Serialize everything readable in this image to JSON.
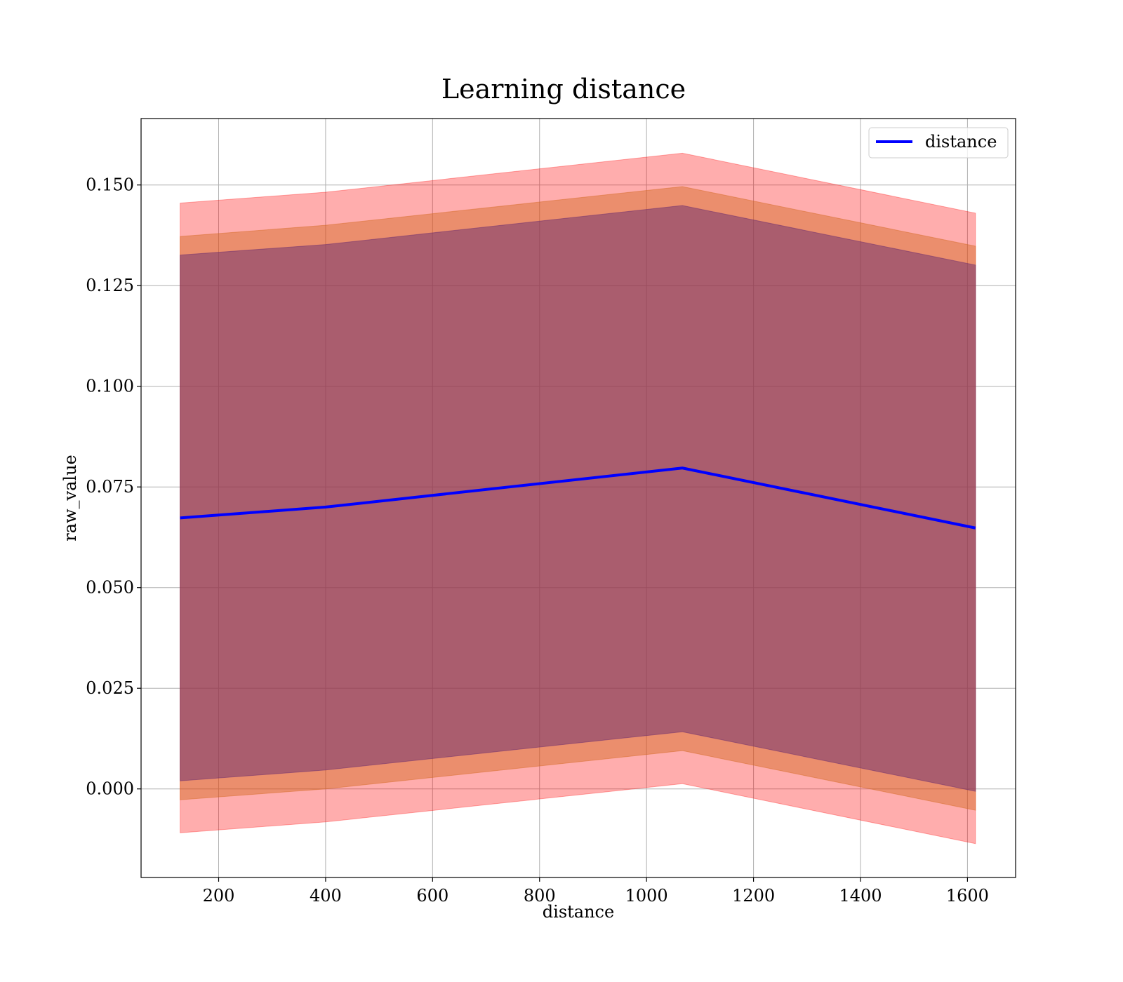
{
  "chart_data": {
    "type": "line",
    "title": "Learning distance",
    "xlabel": "distance",
    "ylabel": "raw_value",
    "xlim": [
      55,
      1690
    ],
    "ylim": [
      -0.022,
      0.1665
    ],
    "xticks": [
      200,
      400,
      600,
      800,
      1000,
      1200,
      1400,
      1600
    ],
    "yticks": [
      0.0,
      0.025,
      0.05,
      0.075,
      0.1,
      0.125,
      0.15
    ],
    "ytick_labels": [
      "0.000",
      "0.025",
      "0.050",
      "0.075",
      "0.100",
      "0.125",
      "0.150"
    ],
    "grid": true,
    "legend_position": "top-right",
    "series": [
      {
        "name": "distance",
        "color": "#0000ff",
        "x": [
          128,
          400,
          1067,
          1615
        ],
        "y": [
          0.0673,
          0.07,
          0.0797,
          0.0648
        ]
      }
    ],
    "bands": [
      {
        "color": "#ff0000",
        "opacity": 0.32,
        "x": [
          128,
          400,
          1067,
          1615
        ],
        "lower": [
          -0.0109,
          -0.0082,
          0.0013,
          -0.0136
        ],
        "upper": [
          0.1455,
          0.1482,
          0.1579,
          0.143
        ]
      },
      {
        "color": "#d2691e",
        "opacity": 0.45,
        "x": [
          128,
          400,
          1067,
          1615
        ],
        "lower": [
          -0.0027,
          0.0,
          0.0095,
          -0.0053
        ],
        "upper": [
          0.1372,
          0.14,
          0.1496,
          0.1348
        ]
      },
      {
        "color": "#6a2c70",
        "opacity": 0.5,
        "x": [
          128,
          400,
          1067,
          1615
        ],
        "lower": [
          0.002,
          0.0047,
          0.0142,
          -0.0006
        ],
        "upper": [
          0.1326,
          0.1352,
          0.1449,
          0.1301
        ]
      }
    ]
  }
}
